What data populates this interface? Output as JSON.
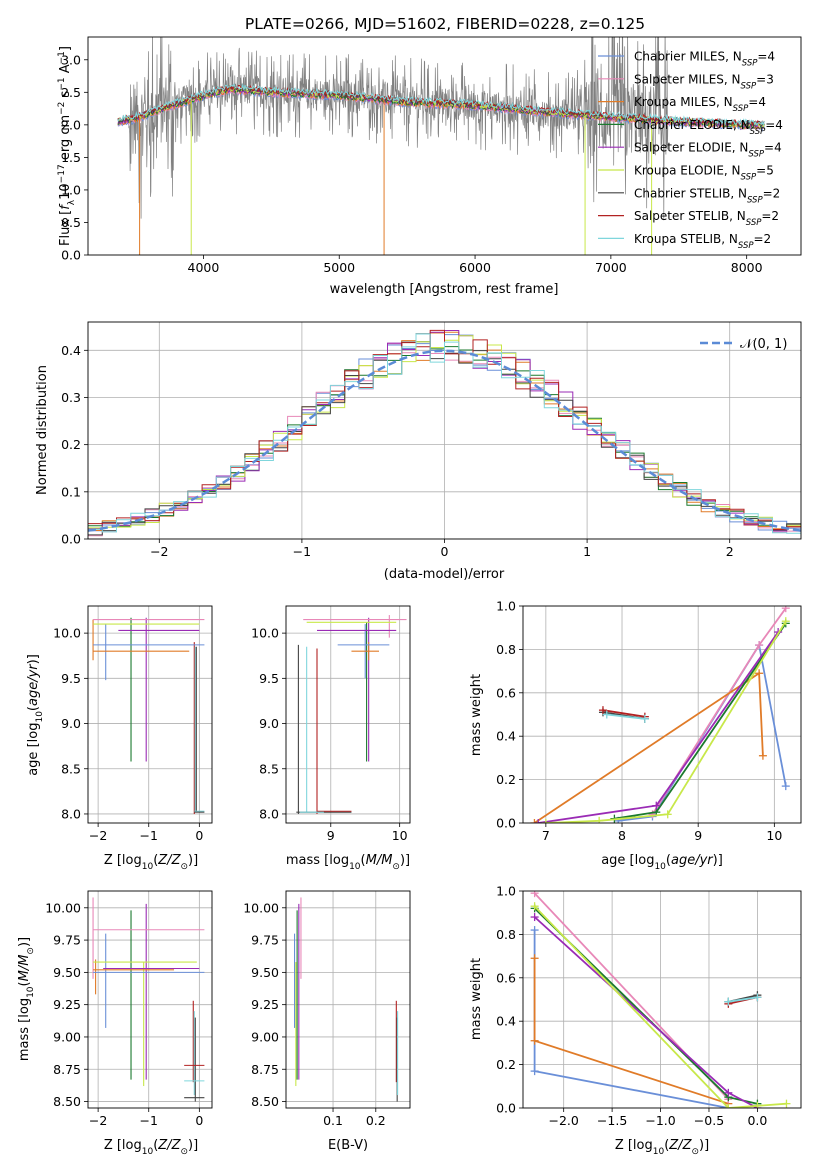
{
  "title": "PLATE=0266, MJD=51602, FIBERID=0228, z=0.125",
  "colors": {
    "Chabrier MILES": "#6a8fd8",
    "Salpeter MILES": "#e888b8",
    "Kroupa MILES": "#e07b28",
    "Chabrier ELODIE": "#1b7a2e",
    "Salpeter ELODIE": "#9a2bb5",
    "Kroupa ELODIE": "#c8e84a",
    "Chabrier STELIB": "#444444",
    "Salpeter STELIB": "#b22222",
    "Kroupa STELIB": "#7fd6dc",
    "data": "#808080"
  },
  "chart_data": [
    {
      "type": "line",
      "panel": "spectrum",
      "xlabel": "wavelength [Angstrom, rest frame]",
      "ylabel_parts": [
        "Flux [",
        "f",
        "λ",
        "10",
        "−17",
        " erg cm",
        "−2",
        " s",
        "−1",
        " A",
        "−1",
        "]"
      ],
      "xlim": [
        3150,
        8400
      ],
      "ylim": [
        0,
        3.35
      ],
      "xticks": [
        4000,
        5000,
        6000,
        7000,
        8000
      ],
      "yticks": [
        0.0,
        0.5,
        1.0,
        1.5,
        2.0,
        2.5,
        3.0
      ],
      "continuum": [
        [
          3370,
          2.05
        ],
        [
          3500,
          2.1
        ],
        [
          3700,
          2.25
        ],
        [
          4000,
          2.45
        ],
        [
          4200,
          2.55
        ],
        [
          4500,
          2.5
        ],
        [
          5000,
          2.45
        ],
        [
          5500,
          2.35
        ],
        [
          6000,
          2.3
        ],
        [
          6500,
          2.2
        ],
        [
          7000,
          2.12
        ],
        [
          7500,
          2.05
        ],
        [
          8000,
          2.0
        ],
        [
          8130,
          2.0
        ]
      ],
      "legend": [
        {
          "name": "Chabrier MILES",
          "nssp": "4"
        },
        {
          "name": "Salpeter MILES",
          "nssp": "3"
        },
        {
          "name": "Kroupa MILES",
          "nssp": "4"
        },
        {
          "name": "Chabrier ELODIE",
          "nssp": "4"
        },
        {
          "name": "Salpeter ELODIE",
          "nssp": "4"
        },
        {
          "name": "Kroupa ELODIE",
          "nssp": "5"
        },
        {
          "name": "Chabrier STELIB",
          "nssp": "2"
        },
        {
          "name": "Salpeter STELIB",
          "nssp": "2"
        },
        {
          "name": "Kroupa STELIB",
          "nssp": "2"
        }
      ]
    },
    {
      "type": "histogram",
      "panel": "residuals",
      "xlabel": "(data-model)/error",
      "ylabel": "Normed distribution",
      "xlim": [
        -2.5,
        2.5
      ],
      "ylim": [
        0,
        0.46
      ],
      "xticks": [
        -2,
        -1,
        0,
        1,
        2
      ],
      "yticks": [
        0.0,
        0.1,
        0.2,
        0.3,
        0.4
      ],
      "bin_width": 0.1,
      "reference": {
        "label": "𝒩(0, 1)",
        "mean": 0,
        "sigma": 1
      }
    },
    {
      "type": "errorbar",
      "panel": "age-vs-Z",
      "xlabel": "Z [log10(Z/Z⊙)]",
      "ylabel": "age  [log10(age/yr)]",
      "xlim": [
        -2.2,
        0.25
      ],
      "ylim": [
        7.9,
        10.3
      ],
      "xticks": [
        -2,
        -1,
        0
      ],
      "yticks": [
        8.0,
        8.5,
        9.0,
        9.5,
        10.0
      ],
      "vertical": [
        {
          "model": "Kroupa MILES",
          "x": -2.1,
          "y0": 9.7,
          "y1": 10.15
        },
        {
          "model": "Chabrier MILES",
          "x": -1.85,
          "y0": 9.48,
          "y1": 10.1
        },
        {
          "model": "Chabrier ELODIE",
          "x": -1.35,
          "y0": 8.58,
          "y1": 10.17
        },
        {
          "model": "Salpeter ELODIE",
          "x": -1.05,
          "y0": 8.58,
          "y1": 10.17
        },
        {
          "model": "Salpeter STELIB",
          "x": -0.1,
          "y0": 8.0,
          "y1": 9.9
        },
        {
          "model": "Kroupa STELIB",
          "x": -0.08,
          "y0": 8.02,
          "y1": 9.85
        },
        {
          "model": "Chabrier STELIB",
          "x": -0.06,
          "y0": 8.02,
          "y1": 9.85
        }
      ],
      "horizontal": [
        {
          "model": "Salpeter MILES",
          "y": 10.15,
          "x0": -2.1,
          "x1": 0.1
        },
        {
          "model": "Kroupa ELODIE",
          "y": 10.1,
          "x0": -2.1,
          "x1": 0.0
        },
        {
          "model": "Salpeter ELODIE",
          "y": 10.03,
          "x0": -1.6,
          "x1": 0.0
        },
        {
          "model": "Chabrier MILES",
          "y": 9.87,
          "x0": -2.1,
          "x1": 0.1
        },
        {
          "model": "Kroupa MILES",
          "y": 9.8,
          "x0": -2.1,
          "x1": -0.2
        },
        {
          "model": "Kroupa STELIB",
          "y": 8.03,
          "x0": -0.1,
          "x1": 0.1
        },
        {
          "model": "Chabrier STELIB",
          "y": 8.02,
          "x0": -0.1,
          "x1": 0.1
        }
      ]
    },
    {
      "type": "errorbar",
      "panel": "age-vs-mass",
      "xlabel": "mass [log10(M/M⊙)]",
      "xlim": [
        8.35,
        10.15
      ],
      "ylim": [
        7.9,
        10.3
      ],
      "xticks": [
        9,
        10
      ],
      "yticks": [
        8.0,
        8.5,
        9.0,
        9.5,
        10.0
      ],
      "vertical": [
        {
          "model": "Chabrier STELIB",
          "x": 8.53,
          "y0": 8.0,
          "y1": 9.87
        },
        {
          "model": "Kroupa STELIB",
          "x": 8.65,
          "y0": 8.02,
          "y1": 9.85
        },
        {
          "model": "Salpeter STELIB",
          "x": 8.8,
          "y0": 8.0,
          "y1": 9.83
        },
        {
          "model": "Chabrier ELODIE",
          "x": 9.52,
          "y0": 8.58,
          "y1": 10.12
        },
        {
          "model": "Salpeter ELODIE",
          "x": 9.55,
          "y0": 8.58,
          "y1": 10.17
        },
        {
          "model": "Chabrier MILES",
          "x": 9.5,
          "y0": 9.5,
          "y1": 10.1
        },
        {
          "model": "Salpeter MILES",
          "x": 9.85,
          "y0": 9.95,
          "y1": 10.2
        },
        {
          "model": "Kroupa MILES",
          "x": 9.55,
          "y0": 9.7,
          "y1": 9.9
        }
      ],
      "horizontal": [
        {
          "model": "Salpeter MILES",
          "y": 10.15,
          "x0": 8.6,
          "x1": 10.1
        },
        {
          "model": "Kroupa ELODIE",
          "y": 10.12,
          "x0": 8.65,
          "x1": 9.95
        },
        {
          "model": "Salpeter ELODIE",
          "y": 10.03,
          "x0": 8.8,
          "x1": 9.95
        },
        {
          "model": "Chabrier MILES",
          "y": 9.87,
          "x0": 9.1,
          "x1": 9.85
        },
        {
          "model": "Kroupa MILES",
          "y": 9.8,
          "x0": 9.3,
          "x1": 9.7
        },
        {
          "model": "Chabrier STELIB",
          "y": 8.02,
          "x0": 8.5,
          "x1": 9.3
        },
        {
          "model": "Salpeter STELIB",
          "y": 8.03,
          "x0": 8.8,
          "x1": 9.3
        },
        {
          "model": "Kroupa STELIB",
          "y": 8.02,
          "x0": 8.55,
          "x1": 8.9
        }
      ]
    },
    {
      "type": "line",
      "panel": "massweight-vs-age",
      "xlabel": "age  [log10(age/yr)]",
      "ylabel": "mass weight",
      "xlim": [
        6.7,
        10.35
      ],
      "ylim": [
        0,
        1
      ],
      "xticks": [
        7,
        8,
        9,
        10
      ],
      "yticks": [
        0.0,
        0.2,
        0.4,
        0.6,
        0.8,
        1.0
      ],
      "series": [
        {
          "model": "Chabrier MILES",
          "points": [
            [
              7.95,
              0.01
            ],
            [
              8.4,
              0.03
            ],
            [
              9.8,
              0.82
            ],
            [
              10.15,
              0.17
            ]
          ]
        },
        {
          "model": "Salpeter MILES",
          "points": [
            [
              8.4,
              0.04
            ],
            [
              9.8,
              0.82
            ],
            [
              10.15,
              0.99
            ]
          ]
        },
        {
          "model": "Kroupa MILES",
          "points": [
            [
              6.85,
              0.0
            ],
            [
              9.8,
              0.69
            ],
            [
              9.85,
              0.31
            ]
          ]
        },
        {
          "model": "Chabrier ELODIE",
          "points": [
            [
              7.9,
              0.02
            ],
            [
              8.45,
              0.05
            ],
            [
              10.15,
              0.92
            ]
          ]
        },
        {
          "model": "Salpeter ELODIE",
          "points": [
            [
              6.9,
              0.0
            ],
            [
              8.45,
              0.08
            ],
            [
              10.05,
              0.88
            ]
          ]
        },
        {
          "model": "Kroupa ELODIE",
          "points": [
            [
              7.0,
              0.0
            ],
            [
              7.7,
              0.01
            ],
            [
              8.6,
              0.04
            ],
            [
              10.15,
              0.93
            ]
          ]
        },
        {
          "model": "Chabrier STELIB",
          "points": [
            [
              7.75,
              0.51
            ],
            [
              8.3,
              0.48
            ]
          ]
        },
        {
          "model": "Salpeter STELIB",
          "points": [
            [
              7.75,
              0.52
            ],
            [
              8.3,
              0.49
            ]
          ]
        },
        {
          "model": "Kroupa STELIB",
          "points": [
            [
              7.8,
              0.5
            ],
            [
              8.3,
              0.48
            ]
          ]
        }
      ]
    },
    {
      "type": "errorbar",
      "panel": "mass-vs-Z",
      "xlabel": "Z [log10(Z/Z⊙)]",
      "ylabel": "mass [log10(M/M⊙)]",
      "xlim": [
        -2.2,
        0.25
      ],
      "ylim": [
        8.45,
        10.13
      ],
      "xticks": [
        -2,
        -1,
        0
      ],
      "yticks": [
        8.5,
        8.75,
        9.0,
        9.25,
        9.5,
        9.75,
        10.0
      ],
      "vertical": [
        {
          "model": "Salpeter MILES",
          "x": -2.1,
          "y0": 9.45,
          "y1": 10.08
        },
        {
          "model": "Kroupa MILES",
          "x": -2.05,
          "y0": 9.33,
          "y1": 9.6
        },
        {
          "model": "Chabrier MILES",
          "x": -1.85,
          "y0": 9.07,
          "y1": 9.8
        },
        {
          "model": "Chabrier ELODIE",
          "x": -1.35,
          "y0": 8.67,
          "y1": 9.98
        },
        {
          "model": "Kroupa ELODIE",
          "x": -1.1,
          "y0": 8.62,
          "y1": 9.58
        },
        {
          "model": "Salpeter ELODIE",
          "x": -1.05,
          "y0": 8.67,
          "y1": 10.03
        },
        {
          "model": "Salpeter STELIB",
          "x": -0.12,
          "y0": 8.65,
          "y1": 9.28
        },
        {
          "model": "Kroupa STELIB",
          "x": -0.1,
          "y0": 8.55,
          "y1": 9.2
        },
        {
          "model": "Chabrier STELIB",
          "x": -0.08,
          "y0": 8.5,
          "y1": 9.15
        }
      ],
      "horizontal": [
        {
          "model": "Salpeter MILES",
          "y": 9.83,
          "x0": -2.1,
          "x1": 0.1
        },
        {
          "model": "Kroupa ELODIE",
          "y": 9.58,
          "x0": -2.1,
          "x1": -0.05
        },
        {
          "model": "Salpeter ELODIE",
          "y": 9.53,
          "x0": -1.9,
          "x1": 0.0
        },
        {
          "model": "Chabrier MILES",
          "y": 9.5,
          "x0": -2.1,
          "x1": 0.1
        },
        {
          "model": "Kroupa MILES",
          "y": 9.52,
          "x0": -2.1,
          "x1": -0.5
        },
        {
          "model": "Salpeter STELIB",
          "y": 8.78,
          "x0": -0.3,
          "x1": 0.1
        },
        {
          "model": "Kroupa STELIB",
          "y": 8.66,
          "x0": -0.3,
          "x1": 0.1
        },
        {
          "model": "Chabrier STELIB",
          "y": 8.53,
          "x0": -0.3,
          "x1": 0.1
        }
      ]
    },
    {
      "type": "errorbar",
      "panel": "mass-vs-EBV",
      "xlabel": "E(B-V)",
      "xlim": [
        -0.01,
        0.28
      ],
      "ylim": [
        8.45,
        10.13
      ],
      "xticks": [
        0.1,
        0.2
      ],
      "yticks": [
        8.5,
        8.75,
        9.0,
        9.25,
        9.5,
        9.75,
        10.0
      ],
      "vertical": [
        {
          "model": "Chabrier MILES",
          "x": 0.01,
          "y0": 9.07,
          "y1": 9.8
        },
        {
          "model": "Kroupa ELODIE",
          "x": 0.013,
          "y0": 8.62,
          "y1": 9.58
        },
        {
          "model": "Chabrier ELODIE",
          "x": 0.016,
          "y0": 8.67,
          "y1": 9.98
        },
        {
          "model": "Salpeter ELODIE",
          "x": 0.02,
          "y0": 8.67,
          "y1": 10.03
        },
        {
          "model": "Salpeter MILES",
          "x": 0.025,
          "y0": 9.45,
          "y1": 10.08
        },
        {
          "model": "Salpeter STELIB",
          "x": 0.248,
          "y0": 8.65,
          "y1": 9.28
        },
        {
          "model": "Chabrier STELIB",
          "x": 0.25,
          "y0": 8.5,
          "y1": 9.15
        },
        {
          "model": "Kroupa STELIB",
          "x": 0.251,
          "y0": 8.55,
          "y1": 9.2
        }
      ],
      "horizontal": []
    },
    {
      "type": "line",
      "panel": "massweight-vs-Z",
      "xlabel": "Z [log10(Z/Z⊙)]",
      "ylabel": "mass weight",
      "xlim": [
        -2.42,
        0.45
      ],
      "ylim": [
        0,
        1
      ],
      "xticks": [
        -2.0,
        -1.5,
        -1.0,
        -0.5,
        0.0
      ],
      "yticks": [
        0.0,
        0.2,
        0.4,
        0.6,
        0.8,
        1.0
      ],
      "series": [
        {
          "model": "Chabrier MILES",
          "points": [
            [
              -2.3,
              0.82
            ],
            [
              -2.3,
              0.17
            ],
            [
              -0.3,
              0.0
            ]
          ]
        },
        {
          "model": "Kroupa MILES",
          "points": [
            [
              -2.3,
              0.69
            ],
            [
              -2.3,
              0.31
            ],
            [
              -0.3,
              0.02
            ]
          ]
        },
        {
          "model": "Salpeter MILES",
          "points": [
            [
              -2.3,
              0.99
            ],
            [
              -0.3,
              0.04
            ]
          ]
        },
        {
          "model": "Chabrier ELODIE",
          "points": [
            [
              -2.3,
              0.92
            ],
            [
              -0.3,
              0.05
            ],
            [
              0.0,
              0.02
            ]
          ]
        },
        {
          "model": "Salpeter ELODIE",
          "points": [
            [
              -2.3,
              0.88
            ],
            [
              -0.3,
              0.07
            ],
            [
              0.0,
              0.0
            ]
          ]
        },
        {
          "model": "Kroupa ELODIE",
          "points": [
            [
              -2.3,
              0.93
            ],
            [
              -0.3,
              0.0
            ],
            [
              0.0,
              0.01
            ],
            [
              0.3,
              0.02
            ]
          ]
        },
        {
          "model": "Chabrier STELIB",
          "points": [
            [
              -0.3,
              0.49
            ],
            [
              0.0,
              0.52
            ]
          ]
        },
        {
          "model": "Salpeter STELIB",
          "points": [
            [
              -0.3,
              0.48
            ],
            [
              0.0,
              0.51
            ]
          ]
        },
        {
          "model": "Kroupa STELIB",
          "points": [
            [
              -0.3,
              0.49
            ],
            [
              0.0,
              0.51
            ]
          ]
        }
      ]
    }
  ],
  "tick_text": {
    "minus": "−"
  }
}
